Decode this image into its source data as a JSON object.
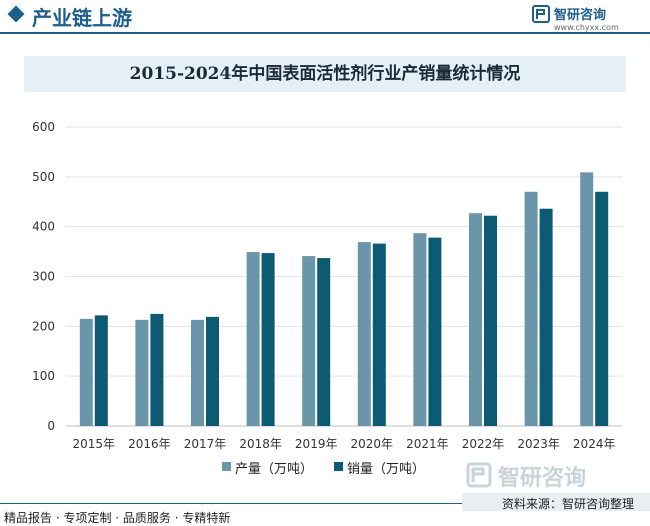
{
  "header": {
    "title": "产业链上游",
    "logo_name": "智研咨询",
    "logo_url": "www.chyxx.com"
  },
  "colors": {
    "brand": "#1f5f8b",
    "production": "#6b95a8",
    "sales": "#0d5a73",
    "title_bg": "#e4f0f6"
  },
  "chart_data": {
    "type": "bar",
    "title": "2015-2024年中国表面活性剂行业产销量统计情况",
    "categories": [
      "2015年",
      "2016年",
      "2017年",
      "2018年",
      "2019年",
      "2020年",
      "2021年",
      "2022年",
      "2023年",
      "2024年"
    ],
    "series": [
      {
        "name": "产量（万吨）",
        "values": [
          215,
          213,
          213,
          349,
          341,
          369,
          387,
          427,
          470,
          509
        ]
      },
      {
        "name": "销量（万吨）",
        "values": [
          222,
          225,
          219,
          347,
          337,
          366,
          378,
          422,
          436,
          470
        ]
      }
    ],
    "ylim": [
      0,
      600
    ],
    "yticks": [
      "0",
      "100",
      "200",
      "300",
      "400",
      "500",
      "600"
    ],
    "grid": true,
    "legend_position": "bottom"
  },
  "footer": {
    "watermark": "智研咨询",
    "source": "资料来源：智研咨询整理",
    "services": "精品报告 · 专项定制 · 品质服务 · 专精特新"
  }
}
